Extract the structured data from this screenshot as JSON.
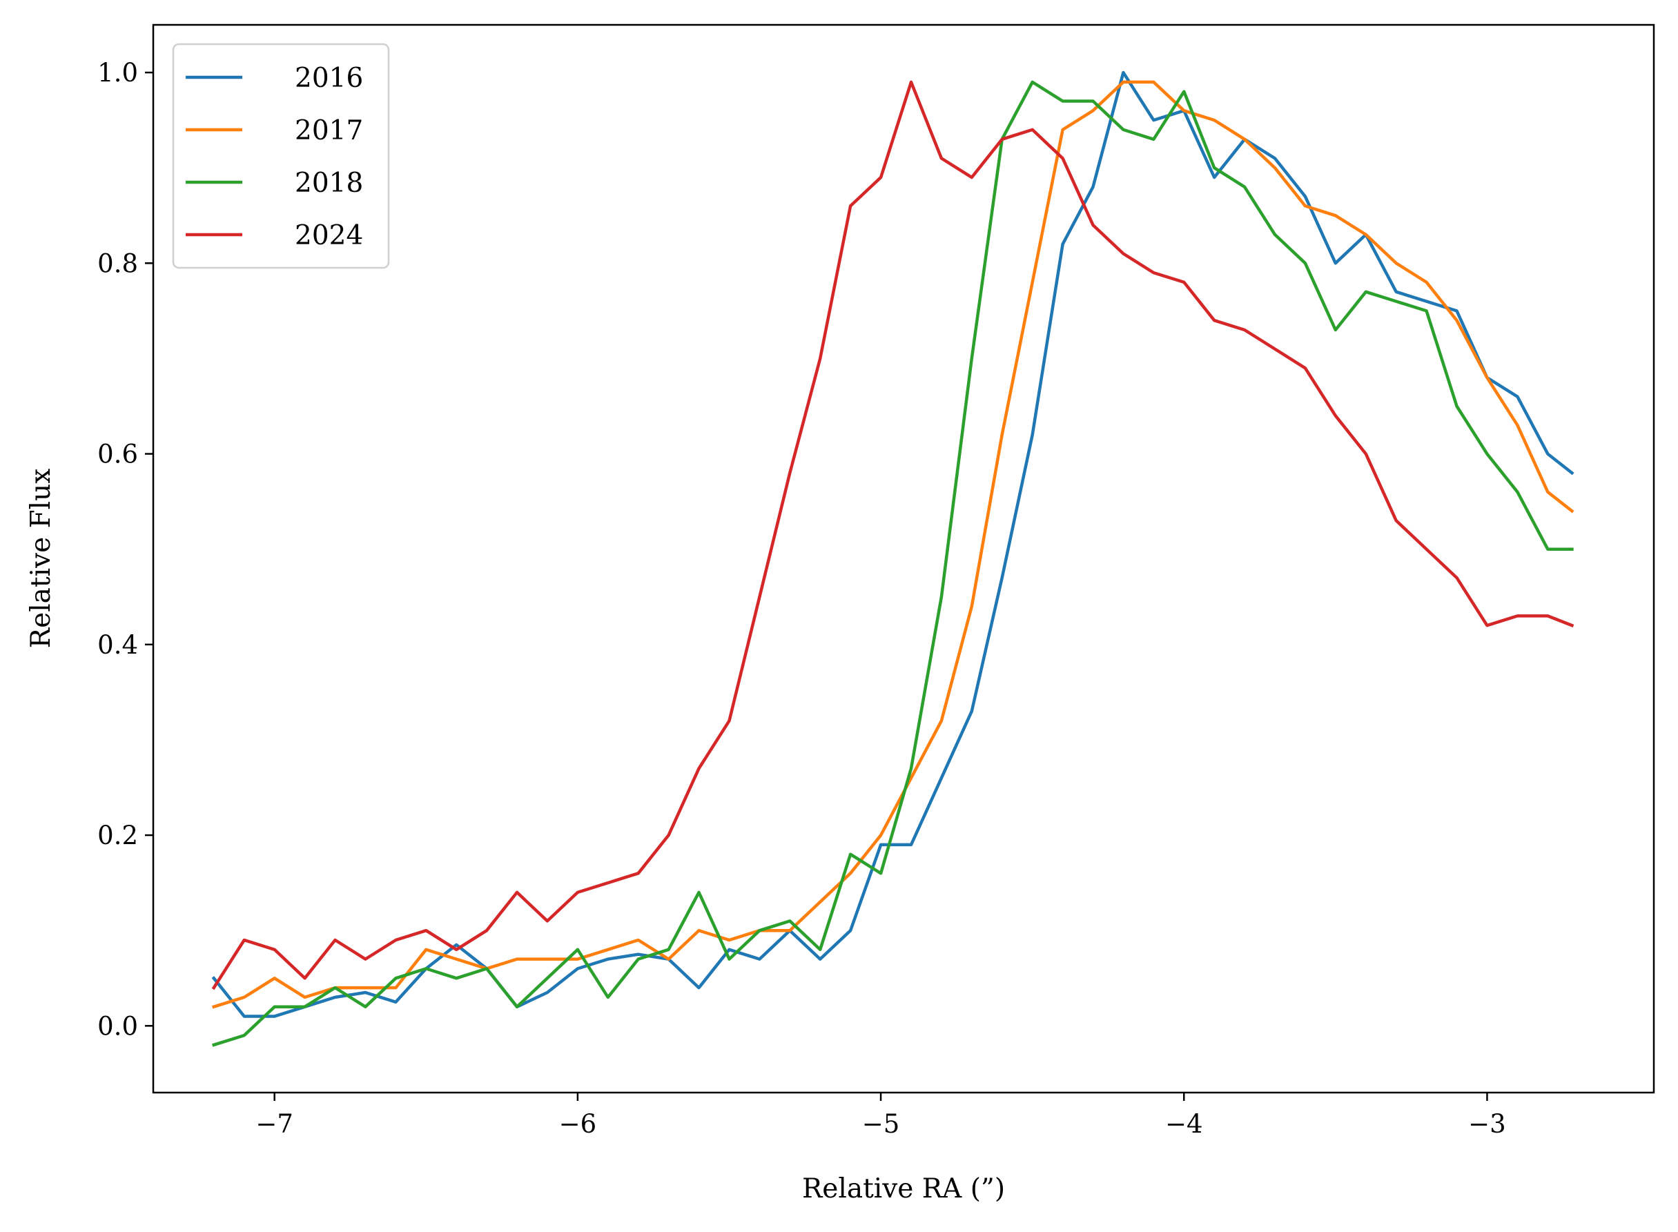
{
  "chart_data": {
    "type": "line",
    "title": "",
    "xlabel": "Relative RA (”)",
    "ylabel": "Relative Flux",
    "xlim": [
      -7.4,
      -2.45
    ],
    "ylim": [
      -0.07,
      1.05
    ],
    "xticks": [
      -7,
      -6,
      -5,
      -4,
      -3
    ],
    "xtick_labels": [
      "−7",
      "−6",
      "−5",
      "−4",
      "−3"
    ],
    "yticks": [
      0.0,
      0.2,
      0.4,
      0.6,
      0.8,
      1.0
    ],
    "ytick_labels": [
      "0.0",
      "0.2",
      "0.4",
      "0.6",
      "0.8",
      "1.0"
    ],
    "grid": false,
    "legend_position": "top-left",
    "x": [
      -7.2,
      -7.1,
      -7.0,
      -6.9,
      -6.8,
      -6.7,
      -6.6,
      -6.5,
      -6.4,
      -6.3,
      -6.2,
      -6.1,
      -6.0,
      -5.9,
      -5.8,
      -5.7,
      -5.6,
      -5.5,
      -5.4,
      -5.3,
      -5.2,
      -5.1,
      -5.0,
      -4.9,
      -4.8,
      -4.7,
      -4.6,
      -4.5,
      -4.4,
      -4.3,
      -4.2,
      -4.1,
      -4.0,
      -3.9,
      -3.8,
      -3.7,
      -3.6,
      -3.5,
      -3.4,
      -3.3,
      -3.2,
      -3.1,
      -3.0,
      -2.9,
      -2.8,
      -2.72
    ],
    "series": [
      {
        "name": "2016",
        "color": "#1f77b4",
        "values": [
          0.05,
          0.01,
          0.01,
          0.02,
          0.03,
          0.035,
          0.025,
          0.06,
          0.085,
          0.06,
          0.02,
          0.035,
          0.06,
          0.07,
          0.075,
          0.07,
          0.04,
          0.08,
          0.07,
          0.1,
          0.07,
          0.1,
          0.19,
          0.19,
          0.26,
          0.33,
          0.47,
          0.62,
          0.82,
          0.88,
          1.0,
          0.95,
          0.96,
          0.89,
          0.93,
          0.91,
          0.87,
          0.8,
          0.83,
          0.77,
          0.76,
          0.75,
          0.68,
          0.66,
          0.6,
          0.58
        ]
      },
      {
        "name": "2017",
        "color": "#ff7f0e",
        "values": [
          0.02,
          0.03,
          0.05,
          0.03,
          0.04,
          0.04,
          0.04,
          0.08,
          0.07,
          0.06,
          0.07,
          0.07,
          0.07,
          0.08,
          0.09,
          0.07,
          0.1,
          0.09,
          0.1,
          0.1,
          0.13,
          0.16,
          0.2,
          0.26,
          0.32,
          0.44,
          0.62,
          0.78,
          0.94,
          0.96,
          0.99,
          0.99,
          0.96,
          0.95,
          0.93,
          0.9,
          0.86,
          0.85,
          0.83,
          0.8,
          0.78,
          0.74,
          0.68,
          0.63,
          0.56,
          0.54
        ]
      },
      {
        "name": "2018",
        "color": "#2ca02c",
        "values": [
          -0.02,
          -0.01,
          0.02,
          0.02,
          0.04,
          0.02,
          0.05,
          0.06,
          0.05,
          0.06,
          0.02,
          0.05,
          0.08,
          0.03,
          0.07,
          0.08,
          0.14,
          0.07,
          0.1,
          0.11,
          0.08,
          0.18,
          0.16,
          0.27,
          0.45,
          0.7,
          0.93,
          0.99,
          0.97,
          0.97,
          0.94,
          0.93,
          0.98,
          0.9,
          0.88,
          0.83,
          0.8,
          0.73,
          0.77,
          0.76,
          0.75,
          0.65,
          0.6,
          0.56,
          0.5,
          0.5
        ]
      },
      {
        "name": "2024",
        "color": "#d62728",
        "values": [
          0.04,
          0.09,
          0.08,
          0.05,
          0.09,
          0.07,
          0.09,
          0.1,
          0.08,
          0.1,
          0.14,
          0.11,
          0.14,
          0.15,
          0.16,
          0.2,
          0.27,
          0.32,
          0.45,
          0.58,
          0.7,
          0.86,
          0.89,
          0.99,
          0.91,
          0.89,
          0.93,
          0.94,
          0.91,
          0.84,
          0.81,
          0.79,
          0.78,
          0.74,
          0.73,
          0.71,
          0.69,
          0.64,
          0.6,
          0.53,
          0.5,
          0.47,
          0.42,
          0.43,
          0.43,
          0.42
        ]
      }
    ]
  }
}
